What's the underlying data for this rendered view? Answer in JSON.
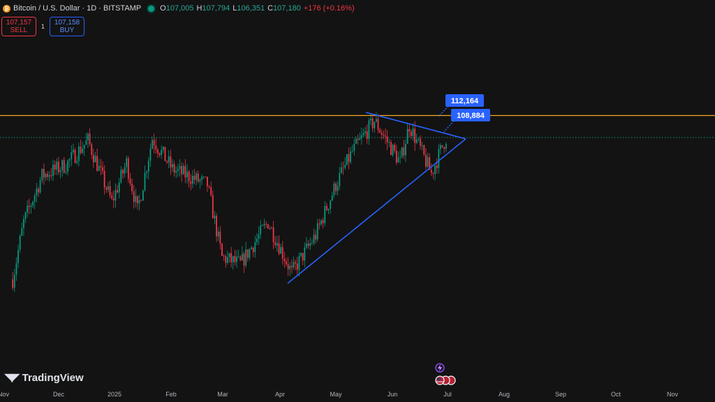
{
  "legend": {
    "logo_glyph": "₿",
    "symbol": "Bitcoin / U.S. Dollar · 1D · BITSTAMP",
    "open_label": "O",
    "open": "107,005",
    "high_label": "H",
    "high": "107,794",
    "low_label": "L",
    "low": "106,351",
    "close_label": "C",
    "close": "107,180",
    "change": "+176 (+0.16%)"
  },
  "trade": {
    "sell_price": "107,157",
    "sell_label": "SELL",
    "quantity": "1",
    "buy_price": "107,158",
    "buy_label": "BUY"
  },
  "brand": {
    "mark": "◥◤",
    "name": "TradingView"
  },
  "colors": {
    "up": "#089981",
    "down": "#f23645",
    "trendline": "#2962ff",
    "resistance": "#f5a623",
    "background": "#131313"
  },
  "icons": [
    "bitcoin-logo-icon",
    "market-open-icon",
    "lightning-icon",
    "us-flag-events-icon"
  ],
  "chart_data": {
    "type": "candlestick",
    "x_ticks": [
      "Nov",
      "Dec",
      "2025",
      "Feb",
      "Mar",
      "Apr",
      "May",
      "Jun",
      "Jul",
      "Aug",
      "Sep",
      "Oct",
      "Nov"
    ],
    "resistance_level": 112164,
    "current_price": 107180,
    "callouts": [
      {
        "label": "112,164",
        "value": 112164
      },
      {
        "label": "108,884",
        "value": 108884
      }
    ],
    "pattern": "symmetrical-triangle",
    "price_path": [
      [
        "2024-11-06",
        75000
      ],
      [
        "2024-11-12",
        88000
      ],
      [
        "2024-11-22",
        98500
      ],
      [
        "2024-12-05",
        101000
      ],
      [
        "2024-12-17",
        106500
      ],
      [
        "2024-12-30",
        92500
      ],
      [
        "2025-01-07",
        101500
      ],
      [
        "2025-01-13",
        90500
      ],
      [
        "2025-01-21",
        107000
      ],
      [
        "2025-02-01",
        100000
      ],
      [
        "2025-02-20",
        96500
      ],
      [
        "2025-02-28",
        80000
      ],
      [
        "2025-03-10",
        78500
      ],
      [
        "2025-03-25",
        88000
      ],
      [
        "2025-04-07",
        76500
      ],
      [
        "2025-04-20",
        85000
      ],
      [
        "2025-05-01",
        96500
      ],
      [
        "2025-05-10",
        104000
      ],
      [
        "2025-05-22",
        111000
      ],
      [
        "2025-06-05",
        101500
      ],
      [
        "2025-06-10",
        110000
      ],
      [
        "2025-06-22",
        99000
      ],
      [
        "2025-06-30",
        107180
      ]
    ]
  }
}
